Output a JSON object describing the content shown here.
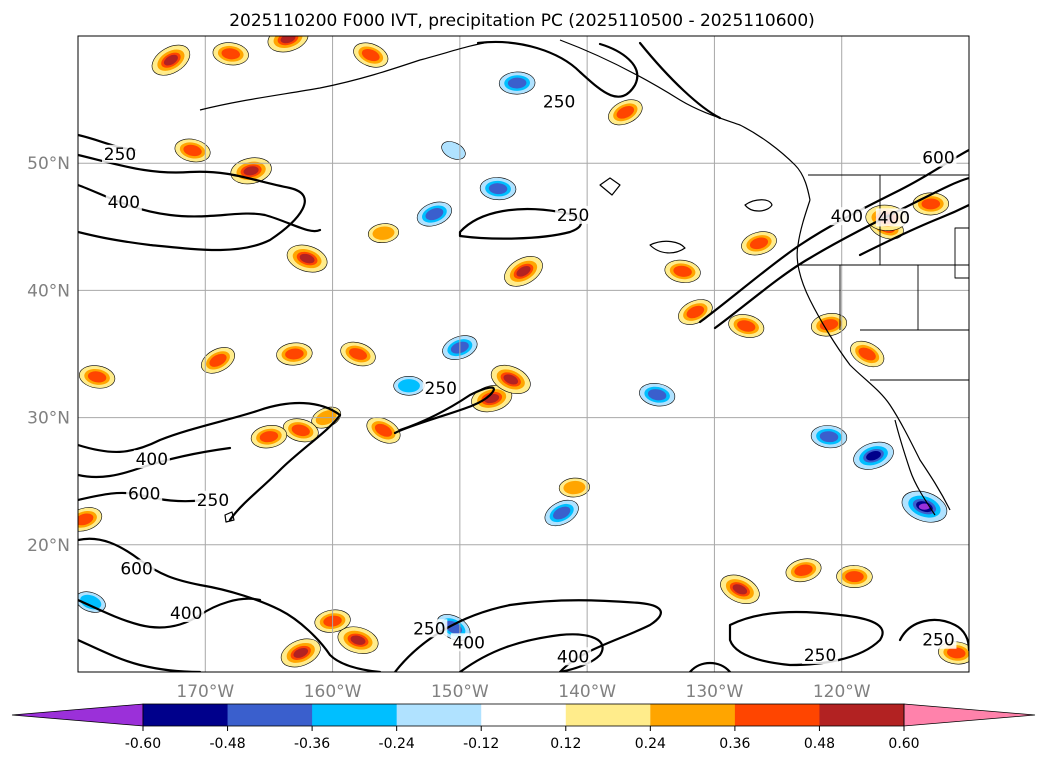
{
  "chart_data": {
    "type": "map",
    "title": "2025110200 F000 IVT, precipitation PC (2025110500 - 2025110600)",
    "projection": "PlateCarree",
    "extent": {
      "lon_min": -180,
      "lon_max": -110,
      "lat_min": 10,
      "lat_max": 60
    },
    "x_ticks": [
      {
        "lon": -170,
        "label": "170°W"
      },
      {
        "lon": -160,
        "label": "160°W"
      },
      {
        "lon": -150,
        "label": "150°W"
      },
      {
        "lon": -140,
        "label": "140°W"
      },
      {
        "lon": -130,
        "label": "130°W"
      },
      {
        "lon": -120,
        "label": "120°W"
      }
    ],
    "y_ticks": [
      {
        "lat": 20,
        "label": "20°N"
      },
      {
        "lat": 30,
        "label": "30°N"
      },
      {
        "lat": 40,
        "label": "40°N"
      },
      {
        "lat": 50,
        "label": "50°N"
      }
    ],
    "gridlines": true,
    "colorbar": {
      "orientation": "horizontal",
      "extend": "both",
      "ticks": [
        "-0.60",
        "-0.48",
        "-0.36",
        "-0.24",
        "-0.12",
        "0.12",
        "0.24",
        "0.36",
        "0.48",
        "0.60"
      ],
      "colors": [
        "#9b30d9",
        "#00008b",
        "#3a5fcd",
        "#00bfff",
        "#b0e2ff",
        "#ffffff",
        "#ffec8b",
        "#ffa500",
        "#ff4500",
        "#b22222",
        "#ff82ab"
      ]
    },
    "ivt_contour_levels": [
      250,
      400,
      600
    ],
    "ivt_contour_labels": [
      {
        "text": "250",
        "lon": -142.2,
        "lat": 54.6
      },
      {
        "text": "250",
        "lon": -176.7,
        "lat": 50.5
      },
      {
        "text": "400",
        "lon": -176.4,
        "lat": 46.7
      },
      {
        "text": "250",
        "lon": -141.1,
        "lat": 45.7
      },
      {
        "text": "600",
        "lon": -112.4,
        "lat": 50.2
      },
      {
        "text": "400",
        "lon": -115.9,
        "lat": 45.5
      },
      {
        "text": "400",
        "lon": -119.6,
        "lat": 45.6
      },
      {
        "text": "250",
        "lon": -151.5,
        "lat": 32.1
      },
      {
        "text": "400",
        "lon": -174.2,
        "lat": 26.5
      },
      {
        "text": "600",
        "lon": -174.8,
        "lat": 23.8
      },
      {
        "text": "250",
        "lon": -169.4,
        "lat": 23.3
      },
      {
        "text": "600",
        "lon": -175.4,
        "lat": 17.9
      },
      {
        "text": "400",
        "lon": -171.5,
        "lat": 14.4
      },
      {
        "text": "250",
        "lon": -152.4,
        "lat": 13.2
      },
      {
        "text": "400",
        "lon": -149.3,
        "lat": 12.1
      },
      {
        "text": "400",
        "lon": -141.1,
        "lat": 11.0
      },
      {
        "text": "250",
        "lon": -121.7,
        "lat": 11.1
      },
      {
        "text": "250",
        "lon": -112.4,
        "lat": 12.3
      }
    ],
    "precip_pc_blobs": [
      {
        "lon": -172.7,
        "lat": 58.1,
        "level": 0.48
      },
      {
        "lon": -168.0,
        "lat": 58.6,
        "level": 0.36
      },
      {
        "lon": -163.5,
        "lat": 59.8,
        "level": 0.48
      },
      {
        "lon": -157.0,
        "lat": 58.5,
        "level": 0.36
      },
      {
        "lon": -145.5,
        "lat": 56.3,
        "level": -0.36
      },
      {
        "lon": -137.0,
        "lat": 54.0,
        "level": 0.36
      },
      {
        "lon": -171.0,
        "lat": 51.0,
        "level": 0.36
      },
      {
        "lon": -166.4,
        "lat": 49.4,
        "level": 0.48
      },
      {
        "lon": -150.5,
        "lat": 51.0,
        "level": -0.12
      },
      {
        "lon": -147.0,
        "lat": 48.0,
        "level": -0.36
      },
      {
        "lon": -152.0,
        "lat": 46.0,
        "level": -0.36
      },
      {
        "lon": -162.0,
        "lat": 42.5,
        "level": 0.48
      },
      {
        "lon": -156.0,
        "lat": 44.5,
        "level": 0.24
      },
      {
        "lon": -145.0,
        "lat": 41.5,
        "level": 0.48
      },
      {
        "lon": -132.5,
        "lat": 41.5,
        "level": 0.36
      },
      {
        "lon": -126.5,
        "lat": 43.7,
        "level": 0.36
      },
      {
        "lon": -116.5,
        "lat": 45.0,
        "level": 0.36
      },
      {
        "lon": -113.0,
        "lat": 46.8,
        "level": 0.36
      },
      {
        "lon": -131.5,
        "lat": 38.3,
        "level": 0.36
      },
      {
        "lon": -127.5,
        "lat": 37.2,
        "level": 0.36
      },
      {
        "lon": -121.0,
        "lat": 37.3,
        "level": 0.36
      },
      {
        "lon": -118.0,
        "lat": 35.0,
        "level": 0.36
      },
      {
        "lon": -116.5,
        "lat": 45.7,
        "level": 0.48
      },
      {
        "lon": -150.0,
        "lat": 35.5,
        "level": -0.36
      },
      {
        "lon": -158.0,
        "lat": 35.0,
        "level": 0.36
      },
      {
        "lon": -163.0,
        "lat": 35.0,
        "level": 0.36
      },
      {
        "lon": -169.0,
        "lat": 34.5,
        "level": 0.36
      },
      {
        "lon": -178.5,
        "lat": 33.2,
        "level": 0.36
      },
      {
        "lon": -147.5,
        "lat": 31.5,
        "level": 0.48
      },
      {
        "lon": -146.0,
        "lat": 33.0,
        "level": 0.48
      },
      {
        "lon": -154.0,
        "lat": 32.5,
        "level": -0.24
      },
      {
        "lon": -160.5,
        "lat": 30.0,
        "level": 0.24
      },
      {
        "lon": -162.5,
        "lat": 29.0,
        "level": 0.36
      },
      {
        "lon": -165.0,
        "lat": 28.5,
        "level": 0.36
      },
      {
        "lon": -156.0,
        "lat": 29.0,
        "level": 0.36
      },
      {
        "lon": -121.0,
        "lat": 28.5,
        "level": -0.36
      },
      {
        "lon": -117.5,
        "lat": 27.0,
        "level": -0.48
      },
      {
        "lon": -113.5,
        "lat": 23.0,
        "level": -0.6
      },
      {
        "lon": -141.0,
        "lat": 24.5,
        "level": 0.24
      },
      {
        "lon": -142.0,
        "lat": 22.5,
        "level": -0.36
      },
      {
        "lon": -134.5,
        "lat": 31.8,
        "level": -0.36
      },
      {
        "lon": -123.0,
        "lat": 18.0,
        "level": 0.36
      },
      {
        "lon": -128.0,
        "lat": 16.5,
        "level": 0.48
      },
      {
        "lon": -119.0,
        "lat": 17.5,
        "level": 0.36
      },
      {
        "lon": -162.5,
        "lat": 11.5,
        "level": 0.48
      },
      {
        "lon": -158.0,
        "lat": 12.5,
        "level": 0.48
      },
      {
        "lon": -160.0,
        "lat": 14.0,
        "level": 0.36
      },
      {
        "lon": -150.5,
        "lat": 13.5,
        "level": -0.36
      },
      {
        "lon": -111.0,
        "lat": 11.5,
        "level": 0.36
      },
      {
        "lon": -179.5,
        "lat": 22.0,
        "level": 0.36
      },
      {
        "lon": -179.0,
        "lat": 15.5,
        "level": -0.24
      }
    ]
  }
}
